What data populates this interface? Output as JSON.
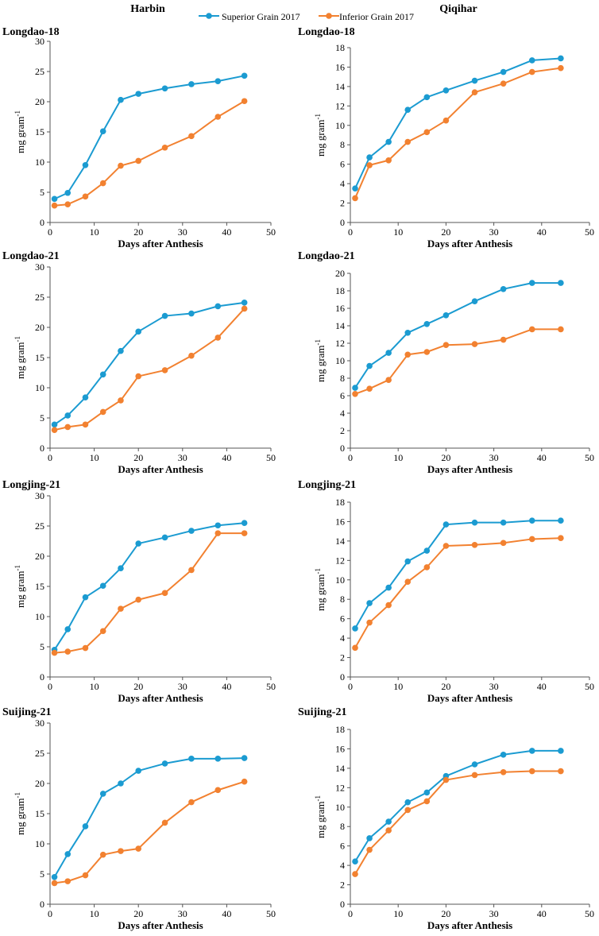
{
  "headers": {
    "left": "Harbin",
    "right": "Qiqihar"
  },
  "legend": [
    {
      "label": "Superior Grain 2017",
      "color": "#1B9BD1"
    },
    {
      "label": "Inferior Grain 2017",
      "color": "#F28130"
    }
  ],
  "colors": {
    "superior": "#1B9BD1",
    "inferior": "#F28130",
    "axis": "#555555"
  },
  "chart_data": [
    {
      "type": "line",
      "title": "Longdao-18",
      "xlabel": "Days after Anthesis",
      "ylabel": "mg gram",
      "ylabel_sup": "-1",
      "xlim": [
        0,
        50
      ],
      "ylim": [
        0,
        30
      ],
      "xticks": [
        0,
        10,
        20,
        30,
        40,
        50
      ],
      "yticks": [
        0,
        5,
        10,
        15,
        20,
        25,
        30
      ],
      "series": [
        {
          "name": "Superior Grain 2017",
          "x": [
            1,
            4,
            8,
            12,
            16,
            20,
            26,
            32,
            38,
            44
          ],
          "y": [
            3.9,
            4.9,
            9.5,
            15.1,
            20.3,
            21.3,
            22.2,
            22.9,
            23.4,
            24.3
          ]
        },
        {
          "name": "Inferior Grain 2017",
          "x": [
            1,
            4,
            8,
            12,
            16,
            20,
            26,
            32,
            38,
            44
          ],
          "y": [
            2.8,
            3.0,
            4.3,
            6.5,
            9.4,
            10.2,
            12.4,
            14.3,
            17.5,
            20.1
          ]
        }
      ]
    },
    {
      "type": "line",
      "title": "Longdao-18",
      "xlabel": "Days after Anthesis",
      "ylabel": "mg gram",
      "ylabel_sup": "-1",
      "xlim": [
        0,
        50
      ],
      "ylim": [
        0,
        18
      ],
      "xticks": [
        0,
        10,
        20,
        30,
        40,
        50
      ],
      "yticks": [
        0,
        2,
        4,
        6,
        8,
        10,
        12,
        14,
        16,
        18
      ],
      "series": [
        {
          "name": "Superior Grain 2017",
          "x": [
            1,
            4,
            8,
            12,
            16,
            20,
            26,
            32,
            38,
            44
          ],
          "y": [
            3.5,
            6.7,
            8.3,
            11.6,
            12.9,
            13.6,
            14.6,
            15.5,
            16.7,
            16.9
          ]
        },
        {
          "name": "Inferior Grain 2017",
          "x": [
            1,
            4,
            8,
            12,
            16,
            20,
            26,
            32,
            38,
            44
          ],
          "y": [
            2.5,
            5.9,
            6.4,
            8.3,
            9.3,
            10.5,
            13.4,
            14.3,
            15.5,
            15.9
          ]
        }
      ]
    },
    {
      "type": "line",
      "title": "Longdao-21",
      "xlabel": "Days after Anthesis",
      "ylabel": "mg gram",
      "ylabel_sup": "-1",
      "xlim": [
        0,
        50
      ],
      "ylim": [
        0,
        30
      ],
      "xticks": [
        0,
        10,
        20,
        30,
        40,
        50
      ],
      "yticks": [
        0,
        5,
        10,
        15,
        20,
        25,
        30
      ],
      "series": [
        {
          "name": "Superior Grain 2017",
          "x": [
            1,
            4,
            8,
            12,
            16,
            20,
            26,
            32,
            38,
            44
          ],
          "y": [
            3.9,
            5.4,
            8.4,
            12.2,
            16.1,
            19.3,
            21.9,
            22.3,
            23.5,
            24.1
          ]
        },
        {
          "name": "Inferior Grain 2017",
          "x": [
            1,
            4,
            8,
            12,
            16,
            20,
            26,
            32,
            38,
            44
          ],
          "y": [
            3.0,
            3.5,
            3.9,
            6.0,
            7.9,
            11.9,
            12.9,
            15.3,
            18.3,
            23.1
          ]
        }
      ]
    },
    {
      "type": "line",
      "title": "Longdao-21",
      "xlabel": "Days after Anthesis",
      "ylabel": "mg gram",
      "ylabel_sup": "-1",
      "xlim": [
        0,
        50
      ],
      "ylim": [
        0,
        20
      ],
      "xticks": [
        0,
        10,
        20,
        30,
        40,
        50
      ],
      "yticks": [
        0,
        2,
        4,
        6,
        8,
        10,
        12,
        14,
        16,
        18,
        20
      ],
      "series": [
        {
          "name": "Superior Grain 2017",
          "x": [
            1,
            4,
            8,
            12,
            16,
            20,
            26,
            32,
            38,
            44
          ],
          "y": [
            6.9,
            9.4,
            10.9,
            13.2,
            14.2,
            15.2,
            16.8,
            18.2,
            18.9,
            18.9
          ]
        },
        {
          "name": "Inferior Grain 2017",
          "x": [
            1,
            4,
            8,
            12,
            16,
            20,
            26,
            32,
            38,
            44
          ],
          "y": [
            6.2,
            6.8,
            7.8,
            10.7,
            11.0,
            11.8,
            11.9,
            12.4,
            13.6,
            13.6
          ]
        }
      ]
    },
    {
      "type": "line",
      "title": "Longjing-21",
      "xlabel": "Days after Anthesis",
      "ylabel": "mg gram",
      "ylabel_sup": "-1",
      "xlim": [
        0,
        50
      ],
      "ylim": [
        0,
        30
      ],
      "xticks": [
        0,
        10,
        20,
        30,
        40,
        50
      ],
      "yticks": [
        0,
        5,
        10,
        15,
        20,
        25,
        30
      ],
      "series": [
        {
          "name": "Superior Grain 2017",
          "x": [
            1,
            4,
            8,
            12,
            16,
            20,
            26,
            32,
            38,
            44
          ],
          "y": [
            4.5,
            7.9,
            13.2,
            15.1,
            18.0,
            22.1,
            23.1,
            24.2,
            25.1,
            25.5
          ]
        },
        {
          "name": "Inferior Grain 2017",
          "x": [
            1,
            4,
            8,
            12,
            16,
            20,
            26,
            32,
            38,
            44
          ],
          "y": [
            4.0,
            4.2,
            4.8,
            7.6,
            11.3,
            12.8,
            13.9,
            17.7,
            23.8,
            23.8
          ]
        }
      ]
    },
    {
      "type": "line",
      "title": "Longjing-21",
      "xlabel": "Days after Anthesis",
      "ylabel": "mg gram",
      "ylabel_sup": "-1",
      "xlim": [
        0,
        50
      ],
      "ylim": [
        0,
        18
      ],
      "xticks": [
        0,
        10,
        20,
        30,
        40,
        50
      ],
      "yticks": [
        0,
        2,
        4,
        6,
        8,
        10,
        12,
        14,
        16,
        18
      ],
      "series": [
        {
          "name": "Superior Grain 2017",
          "x": [
            1,
            4,
            8,
            12,
            16,
            20,
            26,
            32,
            38,
            44
          ],
          "y": [
            5.0,
            7.6,
            9.2,
            11.9,
            13.0,
            15.7,
            15.9,
            15.9,
            16.1,
            16.1
          ]
        },
        {
          "name": "Inferior Grain 2017",
          "x": [
            1,
            4,
            8,
            12,
            16,
            20,
            26,
            32,
            38,
            44
          ],
          "y": [
            3.0,
            5.6,
            7.4,
            9.8,
            11.3,
            13.5,
            13.6,
            13.8,
            14.2,
            14.3
          ]
        }
      ]
    },
    {
      "type": "line",
      "title": "Suijing-21",
      "xlabel": "Days after Anthesis",
      "ylabel": "mg gram",
      "ylabel_sup": "-1",
      "xlim": [
        0,
        50
      ],
      "ylim": [
        0,
        30
      ],
      "xticks": [
        0,
        10,
        20,
        30,
        40,
        50
      ],
      "yticks": [
        0,
        5,
        10,
        15,
        20,
        25,
        30
      ],
      "series": [
        {
          "name": "Superior Grain 2017",
          "x": [
            1,
            4,
            8,
            12,
            16,
            20,
            26,
            32,
            38,
            44
          ],
          "y": [
            4.5,
            8.3,
            12.9,
            18.3,
            20.0,
            22.1,
            23.3,
            24.1,
            24.1,
            24.2
          ]
        },
        {
          "name": "Inferior Grain 2017",
          "x": [
            1,
            4,
            8,
            12,
            16,
            20,
            26,
            32,
            38,
            44
          ],
          "y": [
            3.5,
            3.8,
            4.8,
            8.2,
            8.8,
            9.2,
            13.5,
            16.9,
            18.9,
            20.3
          ]
        }
      ]
    },
    {
      "type": "line",
      "title": "Suijing-21",
      "xlabel": "Days after Anthesis",
      "ylabel": "mg gram",
      "ylabel_sup": "-1",
      "xlim": [
        0,
        50
      ],
      "ylim": [
        0,
        18
      ],
      "xticks": [
        0,
        10,
        20,
        30,
        40,
        50
      ],
      "yticks": [
        0,
        2,
        4,
        6,
        8,
        10,
        12,
        14,
        16,
        18
      ],
      "series": [
        {
          "name": "Superior Grain 2017",
          "x": [
            1,
            4,
            8,
            12,
            16,
            20,
            26,
            32,
            38,
            44
          ],
          "y": [
            4.4,
            6.8,
            8.5,
            10.5,
            11.5,
            13.2,
            14.4,
            15.4,
            15.8,
            15.8
          ]
        },
        {
          "name": "Inferior Grain 2017",
          "x": [
            1,
            4,
            8,
            12,
            16,
            20,
            26,
            32,
            38,
            44
          ],
          "y": [
            3.1,
            5.6,
            7.6,
            9.7,
            10.6,
            12.8,
            13.3,
            13.6,
            13.7,
            13.7
          ]
        }
      ]
    }
  ]
}
